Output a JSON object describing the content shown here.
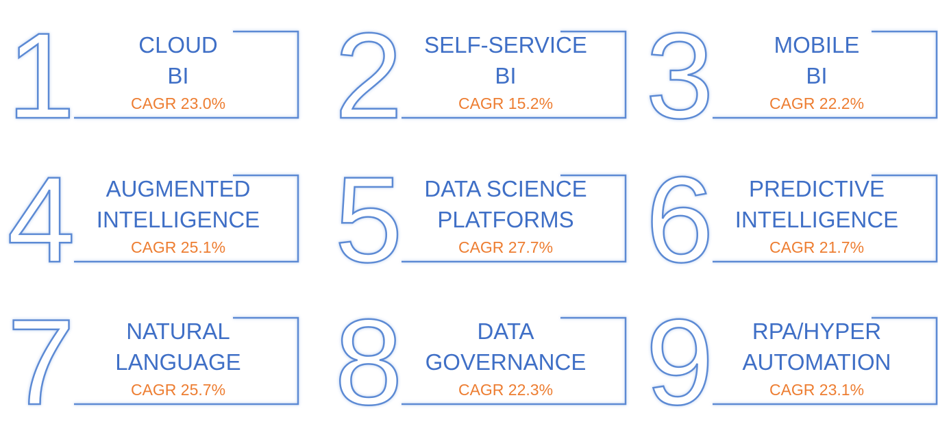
{
  "items": [
    {
      "number": "1",
      "title": [
        "CLOUD",
        "BI"
      ],
      "cagr": "CAGR 23.0%"
    },
    {
      "number": "2",
      "title": [
        "SELF-SERVICE",
        "BI"
      ],
      "cagr": "CAGR 15.2%"
    },
    {
      "number": "3",
      "title": [
        "MOBILE",
        "BI"
      ],
      "cagr": "CAGR 22.2%"
    },
    {
      "number": "4",
      "title": [
        "AUGMENTED",
        "INTELLIGENCE"
      ],
      "cagr": "CAGR 25.1%"
    },
    {
      "number": "5",
      "title": [
        "DATA SCIENCE",
        "PLATFORMS"
      ],
      "cagr": "CAGR 27.7%"
    },
    {
      "number": "6",
      "title": [
        "PREDICTIVE",
        "INTELLIGENCE"
      ],
      "cagr": "CAGR 21.7%"
    },
    {
      "number": "7",
      "title": [
        "NATURAL",
        "LANGUAGE"
      ],
      "cagr": "CAGR 25.7%"
    },
    {
      "number": "8",
      "title": [
        "DATA",
        "GOVERNANCE"
      ],
      "cagr": "CAGR 22.3%"
    },
    {
      "number": "9",
      "title": [
        "RPA/HYPER",
        "AUTOMATION"
      ],
      "cagr": "CAGR 23.1%"
    }
  ]
}
